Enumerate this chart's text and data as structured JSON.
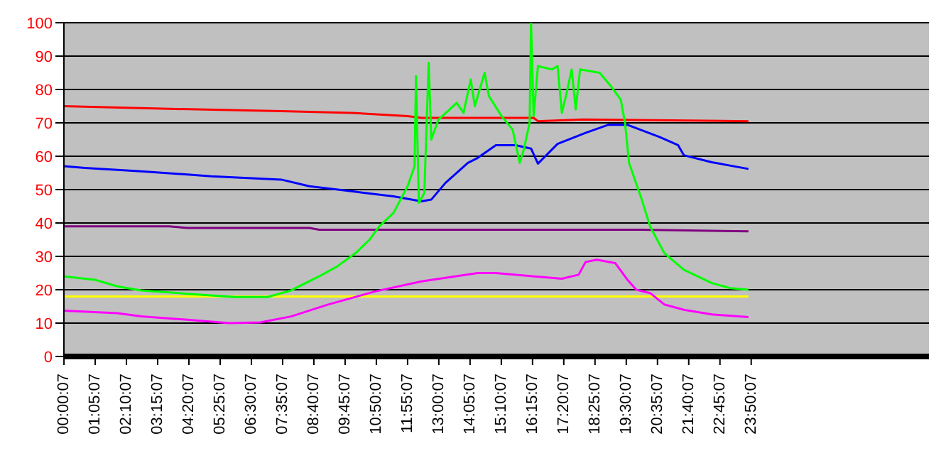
{
  "chart_data": {
    "type": "line",
    "xlim": [
      0,
      30
    ],
    "ylim": [
      0,
      100
    ],
    "yticks": [
      0,
      10,
      20,
      30,
      40,
      50,
      60,
      70,
      80,
      90,
      100
    ],
    "xticks": [
      {
        "value": 0.0019,
        "label": "00:00:07"
      },
      {
        "value": 1.0853,
        "label": "01:05:07"
      },
      {
        "value": 2.1686,
        "label": "02:10:07"
      },
      {
        "value": 3.2519,
        "label": "03:15:07"
      },
      {
        "value": 4.3353,
        "label": "04:20:07"
      },
      {
        "value": 5.4186,
        "label": "05:25:07"
      },
      {
        "value": 6.5019,
        "label": "06:30:07"
      },
      {
        "value": 7.5853,
        "label": "07:35:07"
      },
      {
        "value": 8.6686,
        "label": "08:40:07"
      },
      {
        "value": 9.7519,
        "label": "09:45:07"
      },
      {
        "value": 10.8353,
        "label": "10:50:07"
      },
      {
        "value": 11.9186,
        "label": "11:55:07"
      },
      {
        "value": 13.0019,
        "label": "13:00:07"
      },
      {
        "value": 14.0853,
        "label": "14:05:07"
      },
      {
        "value": 15.1686,
        "label": "15:10:07"
      },
      {
        "value": 16.2519,
        "label": "16:15:07"
      },
      {
        "value": 17.3353,
        "label": "17:20:07"
      },
      {
        "value": 18.4186,
        "label": "18:25:07"
      },
      {
        "value": 19.5019,
        "label": "19:30:07"
      },
      {
        "value": 20.5853,
        "label": "20:35:07"
      },
      {
        "value": 21.6686,
        "label": "21:40:07"
      },
      {
        "value": 22.7519,
        "label": "22:45:07"
      },
      {
        "value": 23.8353,
        "label": "23:50:07"
      }
    ],
    "grid": "y",
    "marker": "none",
    "line_style": "solid",
    "series": [
      {
        "color": "#ff0000",
        "x": [
          0,
          3.65,
          7.54,
          9.97,
          11.92,
          12.4,
          16.29,
          16.44,
          18.0,
          23.74
        ],
        "values": [
          75,
          74.2,
          73.5,
          73,
          72,
          71.5,
          71.5,
          70.5,
          71,
          70.5
        ]
      },
      {
        "color": "#0000ff",
        "x": [
          0,
          0.73,
          2.68,
          5.11,
          7.54,
          8.51,
          9.97,
          11.43,
          12.4,
          12.74,
          13.23,
          14.01,
          14.35,
          14.98,
          15.66,
          16.2,
          16.44,
          17.12,
          18.09,
          18.87,
          19.55,
          20.67,
          21.3,
          21.5,
          22.47,
          23.74
        ],
        "values": [
          57,
          56.5,
          55.5,
          54,
          53,
          51,
          49.5,
          48,
          46.5,
          47,
          52,
          58,
          59.5,
          63.3,
          63.3,
          62.3,
          57.8,
          63.7,
          67,
          69.4,
          69.4,
          65.7,
          63.3,
          60.3,
          58.2,
          56.2
        ]
      },
      {
        "color": "#800080",
        "x": [
          0,
          3.65,
          4.28,
          8.51,
          8.85,
          20.0,
          23.74
        ],
        "values": [
          39,
          39,
          38.5,
          38.5,
          38,
          38,
          37.5
        ]
      },
      {
        "color": "#ffff00",
        "x": [
          0,
          23.74
        ],
        "values": [
          18,
          18
        ]
      },
      {
        "color": "#ff00ff",
        "x": [
          0,
          1.85,
          2.68,
          4.28,
          5.74,
          6.81,
          7.88,
          9.14,
          10.8,
          12.4,
          14.35,
          14.98,
          17.27,
          17.85,
          18.09,
          18.48,
          19.12,
          19.55,
          19.85,
          20.33,
          20.82,
          21.5,
          22.47,
          23.74
        ],
        "values": [
          13.7,
          13,
          12,
          11,
          10,
          10.2,
          12,
          15.5,
          19.5,
          22.5,
          25,
          25,
          23.3,
          24.5,
          28.3,
          29,
          28,
          22.9,
          20,
          19,
          15.6,
          14,
          12.6,
          11.8
        ]
      },
      {
        "color": "#00ff00",
        "x": [
          0,
          1.07,
          1.85,
          2.68,
          4.28,
          5.93,
          7.05,
          7.88,
          8.85,
          9.48,
          10.12,
          10.6,
          10.94,
          11.43,
          11.92,
          12.16,
          12.21,
          12.31,
          12.5,
          12.65,
          12.74,
          12.99,
          13.38,
          13.62,
          13.86,
          14.11,
          14.25,
          14.59,
          14.74,
          15.18,
          15.56,
          15.81,
          15.95,
          16.15,
          16.2,
          16.29,
          16.44,
          16.93,
          17.12,
          17.27,
          17.41,
          17.61,
          17.75,
          17.9,
          18.58,
          18.97,
          19.31,
          19.46,
          19.6,
          20.04,
          20.33,
          20.82,
          21.5,
          22.47,
          23.1,
          23.74
        ],
        "values": [
          24,
          23,
          21,
          19.8,
          18.8,
          17.8,
          17.8,
          19.8,
          24,
          27,
          31,
          35,
          39,
          43,
          51,
          57,
          84,
          46,
          49,
          88,
          65,
          71,
          74,
          76,
          73,
          83,
          75,
          85,
          78,
          72,
          68,
          58,
          62,
          70,
          100,
          72,
          87,
          86,
          87,
          73,
          78,
          86,
          74,
          86,
          85,
          81,
          77,
          70,
          58,
          47,
          39,
          31,
          26,
          22,
          20.5,
          20
        ]
      }
    ]
  }
}
